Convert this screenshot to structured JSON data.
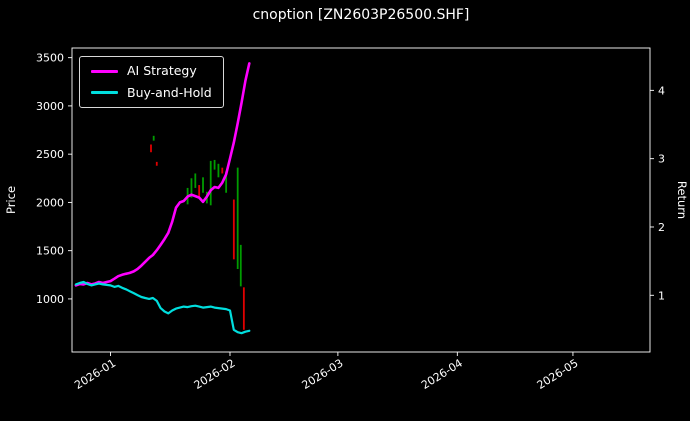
{
  "figure": {
    "background": "#000000",
    "text_color": "#ffffff",
    "spine_color": "#ffffff"
  },
  "chart_data": {
    "type": "line",
    "title": "cnoption [ZN2603P26500.SHF]",
    "xlabel": "",
    "ylabel_left": "Price",
    "ylabel_right": "Return",
    "grid": false,
    "legend_position": "upper left",
    "x_unit": "days from 2026-01-01",
    "xlim": [
      -10,
      140
    ],
    "x_ticks": [
      {
        "x": 0,
        "label": "2026-01"
      },
      {
        "x": 31,
        "label": "2026-02"
      },
      {
        "x": 59,
        "label": "2026-03"
      },
      {
        "x": 90,
        "label": "2026-04"
      },
      {
        "x": 120,
        "label": "2026-05"
      }
    ],
    "price_ylim": [
      450,
      3600
    ],
    "price_ticks": [
      1000,
      1500,
      2000,
      2500,
      3000,
      3500
    ],
    "return_ylim": [
      0.17,
      4.62
    ],
    "return_ticks": [
      1,
      2,
      3,
      4
    ],
    "series": [
      {
        "name": "AI Strategy",
        "color": "#ff00ff",
        "axis": "price",
        "line_width": 2.6,
        "x": [
          -9,
          -8,
          -7,
          -6,
          -5,
          -4,
          -3,
          -2,
          -1,
          0,
          1,
          2,
          3,
          4,
          5,
          6,
          7,
          8,
          9,
          10,
          11,
          12,
          13,
          14,
          15,
          16,
          17,
          18,
          19,
          20,
          21,
          22,
          23,
          24,
          25,
          26,
          27,
          28,
          29,
          30,
          31,
          32,
          33,
          34,
          35,
          36
        ],
        "y": [
          1140,
          1155,
          1150,
          1165,
          1150,
          1160,
          1175,
          1165,
          1175,
          1185,
          1210,
          1235,
          1250,
          1260,
          1270,
          1285,
          1310,
          1345,
          1385,
          1425,
          1455,
          1505,
          1560,
          1620,
          1685,
          1800,
          1945,
          2000,
          2015,
          2060,
          2080,
          2065,
          2050,
          2005,
          2060,
          2125,
          2160,
          2150,
          2205,
          2290,
          2455,
          2620,
          2820,
          3030,
          3260,
          3440
        ]
      },
      {
        "name": "Buy-and-Hold",
        "color": "#00dede",
        "axis": "price",
        "line_width": 2.2,
        "x": [
          -9,
          -8,
          -7,
          -6,
          -5,
          -4,
          -3,
          -2,
          -1,
          0,
          1,
          2,
          3,
          4,
          5,
          6,
          7,
          8,
          9,
          10,
          11,
          12,
          13,
          14,
          15,
          16,
          17,
          18,
          19,
          20,
          21,
          22,
          23,
          24,
          25,
          26,
          27,
          28,
          29,
          30,
          31,
          32,
          33,
          34,
          35,
          36
        ],
        "y": [
          1150,
          1165,
          1175,
          1155,
          1140,
          1150,
          1160,
          1150,
          1145,
          1140,
          1125,
          1135,
          1115,
          1100,
          1080,
          1060,
          1040,
          1020,
          1010,
          1000,
          1010,
          980,
          905,
          870,
          850,
          880,
          900,
          910,
          920,
          915,
          925,
          930,
          920,
          910,
          915,
          920,
          910,
          905,
          900,
          895,
          880,
          680,
          655,
          645,
          660,
          670
        ]
      }
    ],
    "candles": [
      {
        "x": 10.5,
        "low": 2520,
        "high": 2600,
        "color": "#e00000"
      },
      {
        "x": 11.2,
        "low": 2640,
        "high": 2690,
        "color": "#009c00"
      },
      {
        "x": 12,
        "low": 2380,
        "high": 2420,
        "color": "#e00000"
      },
      {
        "x": 20,
        "low": 1980,
        "high": 2150,
        "color": "#009c00"
      },
      {
        "x": 21,
        "low": 2050,
        "high": 2250,
        "color": "#009c00"
      },
      {
        "x": 22,
        "low": 2150,
        "high": 2300,
        "color": "#009c00"
      },
      {
        "x": 23,
        "low": 2050,
        "high": 2180,
        "color": "#e00000"
      },
      {
        "x": 24,
        "low": 2100,
        "high": 2260,
        "color": "#009c00"
      },
      {
        "x": 25,
        "low": 1990,
        "high": 2110,
        "color": "#009c00"
      },
      {
        "x": 26,
        "low": 1970,
        "high": 2430,
        "color": "#009c00"
      },
      {
        "x": 27,
        "low": 2340,
        "high": 2440,
        "color": "#009c00"
      },
      {
        "x": 28,
        "low": 2260,
        "high": 2400,
        "color": "#009c00"
      },
      {
        "x": 29,
        "low": 2300,
        "high": 2360,
        "color": "#e00000"
      },
      {
        "x": 30,
        "low": 2100,
        "high": 2320,
        "color": "#009c00"
      },
      {
        "x": 32,
        "low": 1410,
        "high": 2030,
        "color": "#e00000"
      },
      {
        "x": 33,
        "low": 1310,
        "high": 2360,
        "color": "#009c00"
      },
      {
        "x": 33.8,
        "low": 1130,
        "high": 1560,
        "color": "#009c00"
      },
      {
        "x": 34.6,
        "low": 680,
        "high": 1120,
        "color": "#e00000"
      }
    ]
  }
}
